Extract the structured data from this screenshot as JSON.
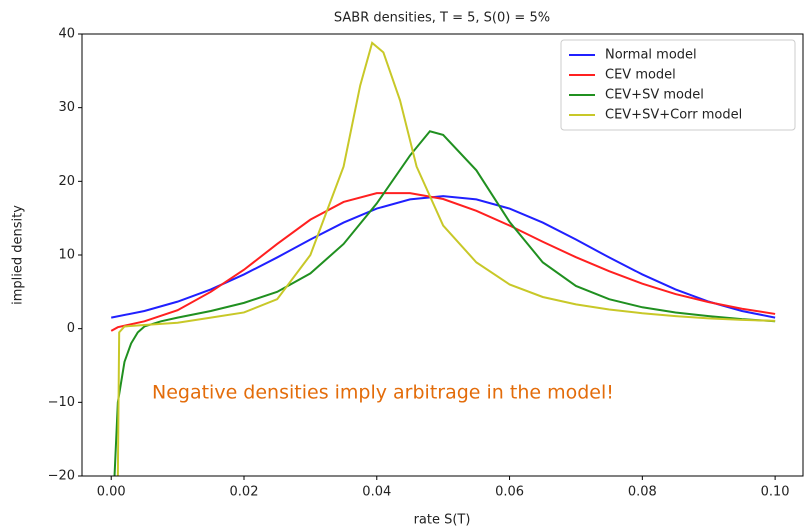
{
  "chart_data": {
    "type": "line",
    "title": "SABR densities, T = 5, S(0) = 5%",
    "xlabel": "rate S(T)",
    "ylabel": "implied density",
    "annotation": "Negative densities imply arbitrage in the model!",
    "annotation_color": "#e36c0a",
    "xlim": [
      -0.0044,
      0.1042
    ],
    "ylim": [
      -20,
      40
    ],
    "xticks": [
      {
        "value": 0,
        "label": "0.00"
      },
      {
        "value": 0.02,
        "label": "0.02"
      },
      {
        "value": 0.04,
        "label": "0.04"
      },
      {
        "value": 0.06,
        "label": "0.06"
      },
      {
        "value": 0.08,
        "label": "0.08"
      },
      {
        "value": 0.1,
        "label": "0.10"
      }
    ],
    "yticks": [
      {
        "value": -20,
        "label": "−20"
      },
      {
        "value": -10,
        "label": "−10"
      },
      0,
      10,
      20,
      30,
      40
    ],
    "legend": "upper right",
    "series": [
      {
        "name": "Normal model",
        "color": "#2020ff",
        "x": [
          0,
          0.005,
          0.01,
          0.015,
          0.02,
          0.025,
          0.03,
          0.035,
          0.04,
          0.045,
          0.05,
          0.055,
          0.06,
          0.065,
          0.07,
          0.075,
          0.08,
          0.085,
          0.09,
          0.095,
          0.1
        ],
        "values": [
          1.5,
          2.4,
          3.67,
          5.33,
          7.36,
          9.67,
          12.1,
          14.4,
          16.3,
          17.55,
          18,
          17.55,
          16.3,
          14.4,
          12.1,
          9.67,
          7.36,
          5.33,
          3.67,
          2.4,
          1.5
        ]
      },
      {
        "name": "CEV model",
        "color": "#ff2020",
        "x": [
          0,
          0.001,
          0.005,
          0.01,
          0.015,
          0.02,
          0.025,
          0.03,
          0.035,
          0.04,
          0.045,
          0.05,
          0.055,
          0.06,
          0.065,
          0.07,
          0.075,
          0.08,
          0.085,
          0.09,
          0.095,
          0.1
        ],
        "values": [
          -0.3,
          0.2,
          1.0,
          2.5,
          5.0,
          8.0,
          11.5,
          14.8,
          17.2,
          18.4,
          18.4,
          17.6,
          16.0,
          14.0,
          11.8,
          9.7,
          7.8,
          6.1,
          4.7,
          3.6,
          2.7,
          2.0
        ]
      },
      {
        "name": "CEV+SV model",
        "color": "#209020",
        "x": [
          0.0005,
          0.001,
          0.002,
          0.003,
          0.004,
          0.005,
          0.0075,
          0.01,
          0.015,
          0.02,
          0.025,
          0.03,
          0.035,
          0.04,
          0.045,
          0.048,
          0.05,
          0.055,
          0.06,
          0.065,
          0.07,
          0.075,
          0.08,
          0.085,
          0.09,
          0.095,
          0.1
        ],
        "values": [
          -20,
          -10,
          -4.5,
          -2,
          -0.5,
          0.3,
          1.0,
          1.5,
          2.4,
          3.5,
          5.0,
          7.5,
          11.5,
          17,
          23.5,
          26.8,
          26.3,
          21.5,
          14.5,
          9,
          5.8,
          4.0,
          2.9,
          2.2,
          1.7,
          1.3,
          1.0
        ]
      },
      {
        "name": "CEV+SV+Corr model",
        "color": "#c8c828",
        "x": [
          0.001,
          0.0012,
          0.002,
          0.005,
          0.01,
          0.015,
          0.02,
          0.025,
          0.03,
          0.035,
          0.0375,
          0.0393,
          0.041,
          0.0435,
          0.046,
          0.05,
          0.055,
          0.06,
          0.065,
          0.07,
          0.075,
          0.08,
          0.085,
          0.09,
          0.095,
          0.1
        ],
        "values": [
          -20,
          -0.5,
          0.3,
          0.5,
          0.8,
          1.5,
          2.2,
          4,
          10,
          22,
          33,
          38.8,
          37.5,
          31,
          22,
          14,
          9,
          6,
          4.3,
          3.3,
          2.6,
          2.1,
          1.7,
          1.4,
          1.2,
          1.05
        ]
      }
    ]
  }
}
